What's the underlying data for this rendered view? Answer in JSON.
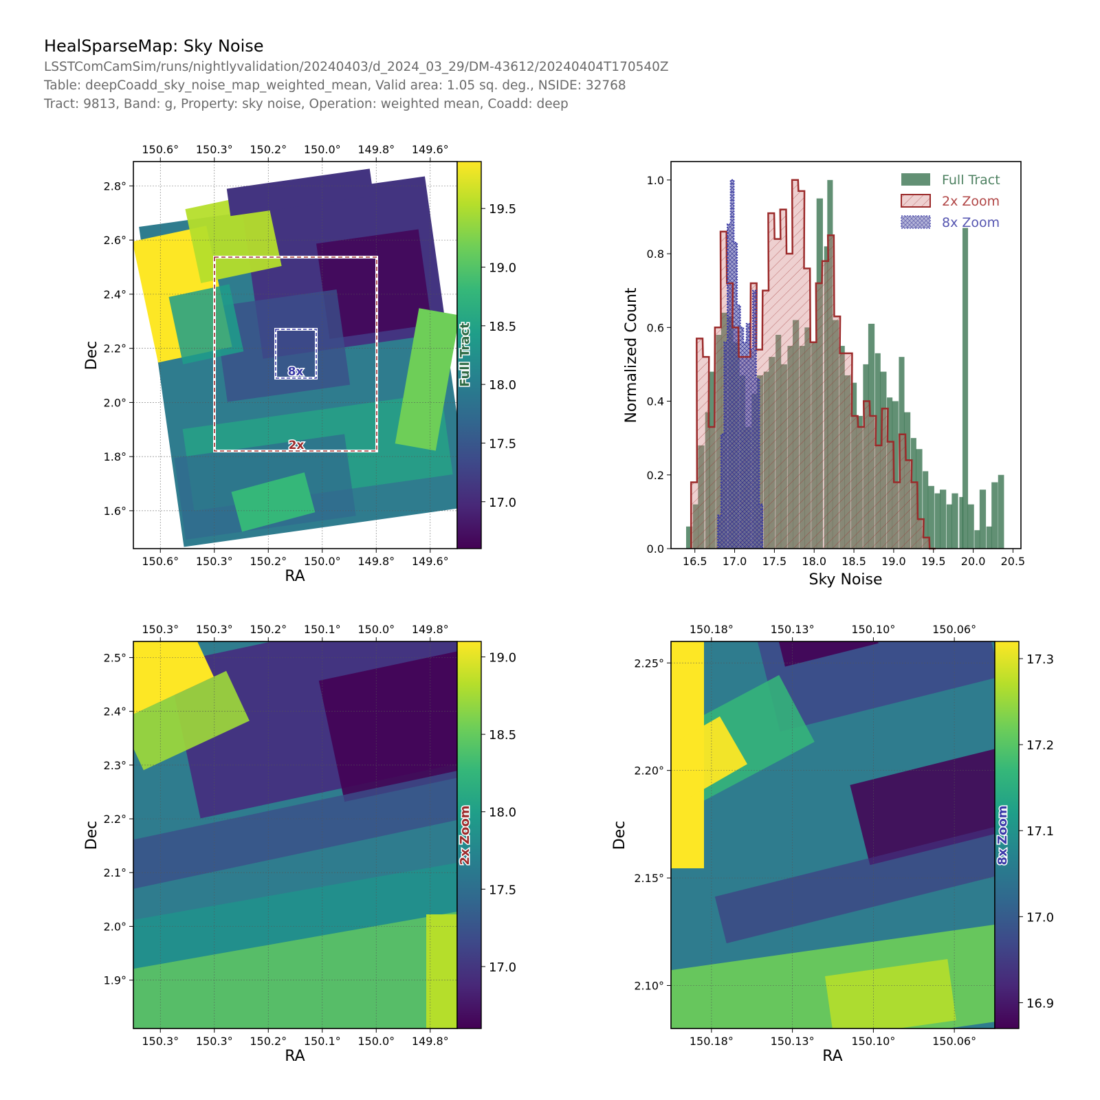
{
  "header": {
    "title": "HealSparseMap: Sky Noise",
    "subtitle_lines": [
      "LSSTComCamSim/runs/nightlyvalidation/20240403/d_2024_03_29/DM-43612/20240404T170540Z",
      "Table: deepCoadd_sky_noise_map_weighted_mean, Valid area: 1.05 sq. deg., NSIDE: 32768",
      "Tract: 9813, Band: g, Property: sky noise, Operation: weighted mean, Coadd: deep"
    ]
  },
  "colors": {
    "full_tract": "#2e6b45",
    "zoom_2x": "#9b2a2a",
    "zoom_8x": "#3a3aa8",
    "viridis": [
      "#440154",
      "#482878",
      "#3e4989",
      "#31688e",
      "#26828e",
      "#1f9e89",
      "#35b779",
      "#6ece58",
      "#b5de2b",
      "#fde725"
    ]
  },
  "chart_data": [
    {
      "type": "heatmap",
      "panel": "full-tract-map",
      "xlabel": "RA",
      "ylabel": "Dec",
      "x_ticks": [
        "150.6°",
        "150.3°",
        "150.2°",
        "150.0°",
        "149.8°",
        "149.6°"
      ],
      "y_ticks": [
        "2.8°",
        "2.6°",
        "2.4°",
        "2.2°",
        "2.0°",
        "1.8°",
        "1.6°"
      ],
      "ylim": [
        1.46,
        2.89
      ],
      "colorbar": {
        "label": "Full Tract",
        "ticks": [
          "19.5",
          "19.0",
          "18.5",
          "18.0",
          "17.5",
          "17.0"
        ],
        "range": [
          16.6,
          19.9
        ]
      },
      "zoom_boxes": [
        {
          "label": "2x",
          "ra_range": [
            "150.3°",
            "149.8°"
          ],
          "dec_range": [
            1.81,
            2.53
          ]
        },
        {
          "label": "8x",
          "ra_range": [
            "150.18°",
            "150.06°"
          ],
          "dec_range": [
            2.08,
            2.26
          ]
        }
      ],
      "grid": true
    },
    {
      "type": "bar",
      "panel": "histogram",
      "title": "",
      "xlabel": "Sky Noise",
      "ylabel": "Normalized Count",
      "x_ticks": [
        "16.5",
        "17.0",
        "17.5",
        "18.0",
        "18.5",
        "19.0",
        "19.5",
        "20.0",
        "20.5"
      ],
      "y_ticks": [
        "0.0",
        "0.2",
        "0.4",
        "0.6",
        "0.8",
        "1.0"
      ],
      "xlim": [
        16.2,
        20.6
      ],
      "ylim": [
        0,
        1.05
      ],
      "legend_position": "top-right",
      "series": [
        {
          "name": "Full Tract",
          "x": [
            16.43,
            16.51,
            16.58,
            16.66,
            16.72,
            16.8,
            16.87,
            16.95,
            17.02,
            17.1,
            17.17,
            17.25,
            17.32,
            17.4,
            17.47,
            17.55,
            17.62,
            17.7,
            17.77,
            17.85,
            17.92,
            18.0,
            18.07,
            18.15,
            18.2,
            18.27,
            18.35,
            18.42,
            18.5,
            18.57,
            18.65,
            18.72,
            18.8,
            18.87,
            18.95,
            19.02,
            19.1,
            19.17,
            19.25,
            19.32,
            19.4,
            19.47,
            19.55,
            19.62,
            19.7,
            19.77,
            19.85,
            19.9,
            19.97,
            20.05,
            20.12,
            20.2,
            20.27,
            20.35
          ],
          "values": [
            0.06,
            0.12,
            0.28,
            0.37,
            0.48,
            0.58,
            0.64,
            0.63,
            0.56,
            0.47,
            0.33,
            0.42,
            0.47,
            0.48,
            0.52,
            0.58,
            0.5,
            0.55,
            0.62,
            0.55,
            0.6,
            0.56,
            0.95,
            0.82,
            1.0,
            0.62,
            0.55,
            0.47,
            0.45,
            0.36,
            0.5,
            0.61,
            0.53,
            0.48,
            0.41,
            0.4,
            0.52,
            0.37,
            0.3,
            0.27,
            0.21,
            0.17,
            0.15,
            0.16,
            0.12,
            0.15,
            0.14,
            0.87,
            0.12,
            0.05,
            0.16,
            0.06,
            0.18,
            0.2
          ]
        },
        {
          "name": "2x Zoom",
          "x": [
            16.49,
            16.56,
            16.64,
            16.71,
            16.79,
            16.86,
            16.94,
            17.01,
            17.09,
            17.16,
            17.24,
            17.31,
            17.39,
            17.46,
            17.54,
            17.61,
            17.69,
            17.76,
            17.84,
            17.91,
            17.99,
            18.06,
            18.14,
            18.21,
            18.29,
            18.36,
            18.44,
            18.51,
            18.59,
            18.66,
            18.74,
            18.81,
            18.89,
            18.96,
            19.04,
            19.11,
            19.19,
            19.26,
            19.34,
            19.41,
            19.49
          ],
          "values": [
            0.18,
            0.57,
            0.52,
            0.33,
            0.6,
            0.86,
            0.72,
            0.6,
            0.52,
            0.52,
            0.72,
            0.54,
            0.7,
            0.91,
            0.84,
            0.92,
            0.8,
            1.0,
            0.97,
            0.76,
            0.56,
            0.72,
            0.78,
            0.85,
            0.63,
            0.53,
            0.53,
            0.36,
            0.33,
            0.4,
            0.36,
            0.28,
            0.38,
            0.29,
            0.18,
            0.31,
            0.24,
            0.18,
            0.08,
            0.03,
            0.0
          ]
        },
        {
          "name": "8x Zoom",
          "x": [
            16.81,
            16.85,
            16.89,
            16.93,
            16.97,
            17.01,
            17.05,
            17.09,
            17.13,
            17.17,
            17.21,
            17.25,
            17.29,
            17.33
          ],
          "values": [
            0.09,
            0.31,
            0.56,
            0.88,
            1.0,
            0.83,
            0.66,
            0.6,
            0.56,
            0.61,
            0.54,
            0.7,
            0.46,
            0.12
          ]
        }
      ],
      "grid": false
    },
    {
      "type": "heatmap",
      "panel": "zoom-2x-map",
      "xlabel": "RA",
      "ylabel": "Dec",
      "x_ticks": [
        "150.3°",
        "150.3°",
        "150.2°",
        "150.1°",
        "150.0°",
        "149.8°"
      ],
      "y_ticks": [
        "2.5°",
        "2.4°",
        "2.3°",
        "2.2°",
        "2.1°",
        "2.0°",
        "1.9°"
      ],
      "ylim": [
        1.81,
        2.53
      ],
      "colorbar": {
        "label": "2x Zoom",
        "ticks": [
          "19.0",
          "18.5",
          "18.0",
          "17.5",
          "17.0"
        ],
        "range": [
          16.6,
          19.1
        ]
      },
      "grid": true
    },
    {
      "type": "heatmap",
      "panel": "zoom-8x-map",
      "xlabel": "RA",
      "ylabel": "Dec",
      "x_ticks": [
        "150.18°",
        "150.13°",
        "150.10°",
        "150.06°"
      ],
      "y_ticks": [
        "2.25°",
        "2.20°",
        "2.15°",
        "2.10°"
      ],
      "ylim": [
        2.08,
        2.26
      ],
      "colorbar": {
        "label": "8x Zoom",
        "ticks": [
          "17.3",
          "17.2",
          "17.1",
          "17.0",
          "16.9"
        ],
        "range": [
          16.87,
          17.32
        ]
      },
      "grid": true
    }
  ]
}
